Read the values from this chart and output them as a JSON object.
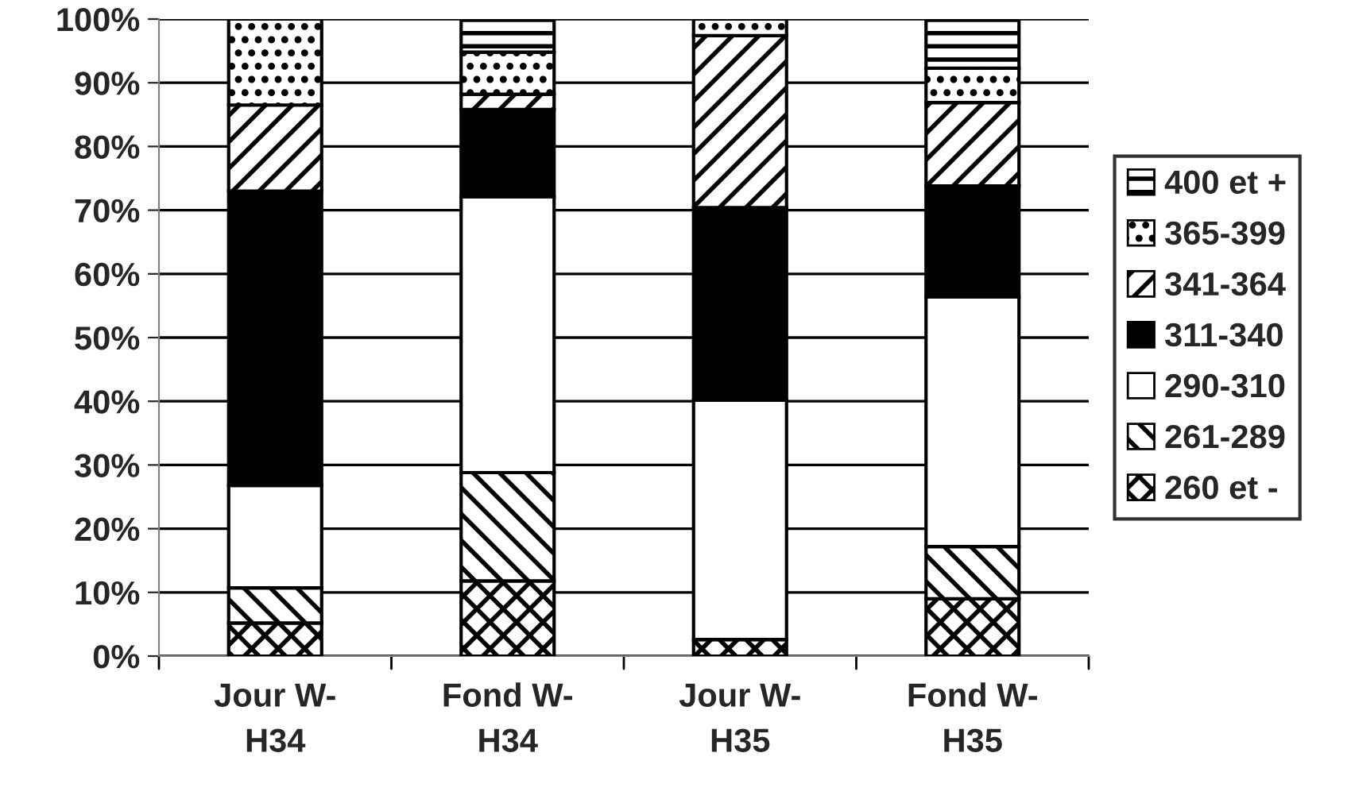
{
  "chart_data": {
    "type": "bar",
    "stacked": true,
    "categories": [
      "Jour W-\nH34",
      "Fond W-\nH34",
      "Jour W-\nH35",
      "Fond W-\nH35"
    ],
    "series": [
      {
        "name": "260 et -",
        "color": "#000000",
        "values": [
          5.2,
          11.8,
          2.6,
          9.0
        ]
      },
      {
        "name": "261-289",
        "color": "#000000",
        "values": [
          5.5,
          17.0,
          0,
          8.2
        ]
      },
      {
        "name": "290-310",
        "color": "#ffffff",
        "values": [
          16.1,
          43.3,
          37.6,
          39.2
        ]
      },
      {
        "name": "311-340",
        "color": "#000000",
        "values": [
          46.2,
          13.7,
          30.2,
          17.4
        ]
      },
      {
        "name": "341-364",
        "color": "#000000",
        "values": [
          13.5,
          2.4,
          27.0,
          13.1
        ]
      },
      {
        "name": "365-399",
        "color": "#000000",
        "values": [
          13.5,
          6.6,
          2.6,
          5.4
        ]
      },
      {
        "name": "400 et +",
        "color": "#000000",
        "values": [
          0,
          5.2,
          0,
          7.7
        ]
      }
    ],
    "ylim": [
      0,
      100
    ],
    "yticks": [
      {
        "value": 0,
        "label": "0%"
      },
      {
        "value": 10,
        "label": "10%"
      },
      {
        "value": 20,
        "label": "20%"
      },
      {
        "value": 30,
        "label": "30%"
      },
      {
        "value": 40,
        "label": "40%"
      },
      {
        "value": 50,
        "label": "50%"
      },
      {
        "value": 60,
        "label": "60%"
      },
      {
        "value": 70,
        "label": "70%"
      },
      {
        "value": 80,
        "label": "80%"
      },
      {
        "value": 90,
        "label": "90%"
      },
      {
        "value": 100,
        "label": "100%"
      }
    ],
    "grid": "y",
    "legend": "right"
  }
}
